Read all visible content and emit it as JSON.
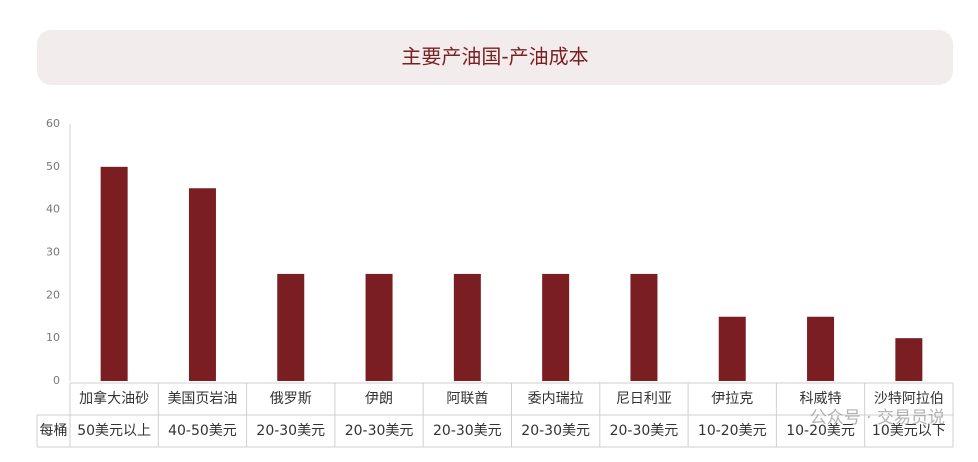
{
  "chart_data": {
    "type": "bar",
    "title": "主要产油国-产油成本",
    "categories": [
      "加拿大油砂",
      "美国页岩油",
      "俄罗斯",
      "伊朗",
      "阿联酋",
      "委内瑞拉",
      "尼日利亚",
      "伊拉克",
      "科威特",
      "沙特阿拉伯"
    ],
    "values": [
      50,
      45,
      25,
      25,
      25,
      25,
      25,
      15,
      15,
      10
    ],
    "color": "#7b1e22",
    "ylim": [
      0,
      60
    ],
    "yticks": [
      0,
      10,
      20,
      30,
      40,
      50,
      60
    ],
    "grid": false,
    "table_row_label": "每桶",
    "table_row": [
      "50美元以上",
      "40-50美元",
      "20-30美元",
      "20-30美元",
      "20-30美元",
      "20-30美元",
      "20-30美元",
      "10-20美元",
      "10-20美元",
      "10美元以下"
    ],
    "watermark": "公众号 · 交易员说"
  }
}
